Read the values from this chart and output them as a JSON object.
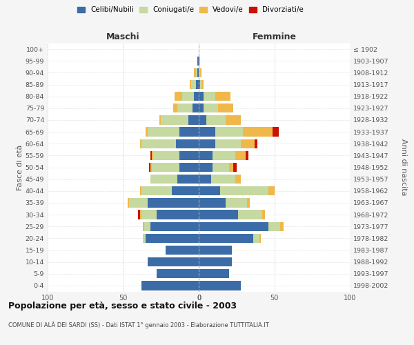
{
  "age_groups": [
    "0-4",
    "5-9",
    "10-14",
    "15-19",
    "20-24",
    "25-29",
    "30-34",
    "35-39",
    "40-44",
    "45-49",
    "50-54",
    "55-59",
    "60-64",
    "65-69",
    "70-74",
    "75-79",
    "80-84",
    "85-89",
    "90-94",
    "95-99",
    "100+"
  ],
  "birth_years": [
    "1998-2002",
    "1993-1997",
    "1988-1992",
    "1983-1987",
    "1978-1982",
    "1973-1977",
    "1968-1972",
    "1963-1967",
    "1958-1962",
    "1953-1957",
    "1948-1952",
    "1943-1947",
    "1938-1942",
    "1933-1937",
    "1928-1932",
    "1923-1927",
    "1918-1922",
    "1913-1917",
    "1908-1912",
    "1903-1907",
    "≤ 1902"
  ],
  "colors": {
    "celibi": "#3b6ca8",
    "coniugati": "#c5d9a0",
    "vedovi": "#f0b84a",
    "divorziati": "#cc1100"
  },
  "maschi": {
    "celibi": [
      38,
      28,
      34,
      22,
      35,
      32,
      28,
      34,
      18,
      14,
      13,
      13,
      15,
      13,
      7,
      4,
      3,
      2,
      1,
      1,
      0
    ],
    "coniugati": [
      0,
      0,
      0,
      0,
      2,
      4,
      10,
      12,
      20,
      18,
      18,
      17,
      23,
      21,
      18,
      10,
      8,
      3,
      1,
      0,
      0
    ],
    "vedovi": [
      0,
      0,
      0,
      0,
      0,
      1,
      1,
      1,
      1,
      0,
      1,
      1,
      1,
      1,
      1,
      3,
      5,
      1,
      1,
      0,
      0
    ],
    "divorziati": [
      0,
      0,
      0,
      0,
      0,
      0,
      1,
      0,
      0,
      0,
      1,
      1,
      0,
      0,
      0,
      0,
      0,
      0,
      0,
      0,
      0
    ]
  },
  "femmine": {
    "celibi": [
      28,
      20,
      22,
      22,
      36,
      46,
      26,
      18,
      14,
      8,
      9,
      9,
      11,
      11,
      5,
      3,
      3,
      1,
      0,
      0,
      0
    ],
    "coniugati": [
      0,
      0,
      0,
      0,
      4,
      8,
      16,
      14,
      32,
      16,
      11,
      15,
      17,
      18,
      13,
      10,
      8,
      1,
      1,
      0,
      0
    ],
    "vedovi": [
      0,
      0,
      0,
      0,
      1,
      2,
      2,
      2,
      4,
      4,
      3,
      7,
      9,
      20,
      10,
      10,
      10,
      1,
      1,
      1,
      0
    ],
    "divorziati": [
      0,
      0,
      0,
      0,
      0,
      0,
      0,
      0,
      0,
      0,
      2,
      2,
      2,
      4,
      0,
      0,
      0,
      0,
      0,
      0,
      0
    ]
  },
  "xlim": 100,
  "title": "Popolazione per età, sesso e stato civile - 2003",
  "subtitle": "COMUNE DI ALÀ DEI SARDI (SS) - Dati ISTAT 1° gennaio 2003 - Elaborazione TUTTITALIA.IT",
  "ylabel_left": "Fasce di età",
  "ylabel_right": "Anni di nascita",
  "legend_labels": [
    "Celibi/Nubili",
    "Coniugati/e",
    "Vedovi/e",
    "Divorziati/e"
  ],
  "bg_color": "#f5f5f5",
  "plot_bg": "#ffffff"
}
